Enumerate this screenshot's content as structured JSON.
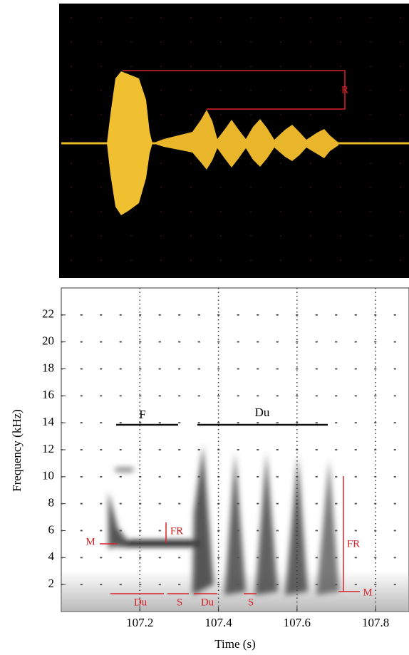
{
  "chart_data": [
    {
      "type": "waveform",
      "annotations": [
        "R"
      ]
    },
    {
      "type": "spectrogram",
      "ylabel": "Frequency (kHz)",
      "xlabel": "Time (s)",
      "xlim": [
        107.0,
        107.885
      ],
      "xticks": [
        107.2,
        107.4,
        107.6,
        107.8
      ],
      "ylim": [
        0,
        24
      ],
      "yticks": [
        2,
        4,
        6,
        8,
        10,
        12,
        14,
        16,
        18,
        20,
        22
      ],
      "grid": true,
      "annotations": [
        "F",
        "Du",
        "M",
        "FR",
        "Du",
        "S",
        "Du",
        "S",
        "FR",
        "M"
      ]
    }
  ]
}
